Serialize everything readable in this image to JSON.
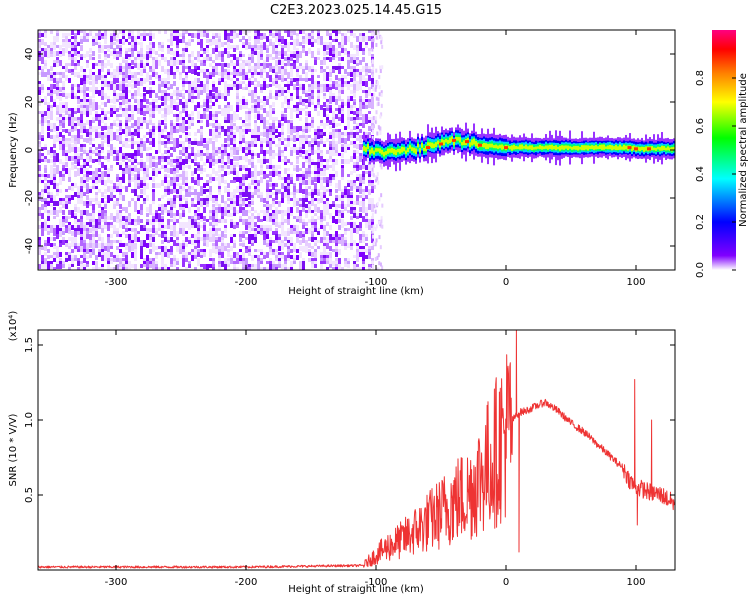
{
  "title": "C2E3.2023.025.14.45.G15",
  "chart_data": [
    {
      "type": "heatmap",
      "xlabel": "Height of straight line (km)",
      "ylabel": "Frequency (Hz)",
      "xlim": [
        -360,
        130
      ],
      "ylim": [
        -50,
        50
      ],
      "x_ticks": [
        -300,
        -200,
        -100,
        0,
        100
      ],
      "y_ticks": [
        -40,
        -20,
        0,
        20,
        40
      ],
      "noise_region_x": [
        -360,
        -102
      ],
      "signal_track": {
        "x": [
          -110,
          -100,
          -90,
          -80,
          -70,
          -60,
          -50,
          -40,
          -30,
          -20,
          -10,
          0,
          20,
          40,
          60,
          80,
          95,
          100,
          110,
          130
        ],
        "y": [
          0.5,
          0,
          -1,
          -0.5,
          0.5,
          1.5,
          3,
          4,
          3.5,
          2,
          1.5,
          1,
          1,
          1,
          1,
          1,
          1,
          0.5,
          0.5,
          0.5
        ]
      },
      "grid": false
    },
    {
      "type": "line",
      "xlabel": "Height of straight line (km)",
      "ylabel": "SNR (10 * V/V)",
      "y_multiplier": "(x10⁴)",
      "xlim": [
        -360,
        130
      ],
      "ylim": [
        0,
        1.6
      ],
      "x_ticks": [
        -300,
        -200,
        -100,
        0,
        100
      ],
      "y_ticks": [
        0.5,
        1.0,
        1.5
      ],
      "series": [
        {
          "color": "#ee3333",
          "x": [
            -360,
            -300,
            -200,
            -110,
            -100,
            -90,
            -80,
            -70,
            -60,
            -50,
            -40,
            -30,
            -20,
            -10,
            0,
            5,
            10,
            15,
            20,
            30,
            40,
            50,
            60,
            70,
            80,
            90,
            95,
            100,
            105,
            110,
            120,
            130
          ],
          "y": [
            0.02,
            0.02,
            0.02,
            0.03,
            0.1,
            0.16,
            0.2,
            0.26,
            0.32,
            0.38,
            0.46,
            0.5,
            0.62,
            0.75,
            0.92,
            1.0,
            1.05,
            1.06,
            1.08,
            1.12,
            1.06,
            0.98,
            0.92,
            0.84,
            0.76,
            0.68,
            0.6,
            0.55,
            0.54,
            0.52,
            0.5,
            0.44
          ]
        }
      ],
      "spikes": [
        {
          "x": 8,
          "y": 1.6
        },
        {
          "x": 10,
          "y": 0.12
        },
        {
          "x": 99,
          "y": 1.27
        },
        {
          "x": 101,
          "y": 0.3
        },
        {
          "x": 112,
          "y": 1.0
        }
      ],
      "grid": false
    }
  ],
  "colorbar": {
    "label": "Normalized spectral amplitude",
    "ticks": [
      "0.0",
      "0.2",
      "0.4",
      "0.6",
      "0.8"
    ],
    "colors": [
      "#ffffff",
      "#8000ff",
      "#0000ff",
      "#00ffff",
      "#00ff00",
      "#ffff00",
      "#ff8000",
      "#ff0000",
      "#ff0080"
    ]
  }
}
